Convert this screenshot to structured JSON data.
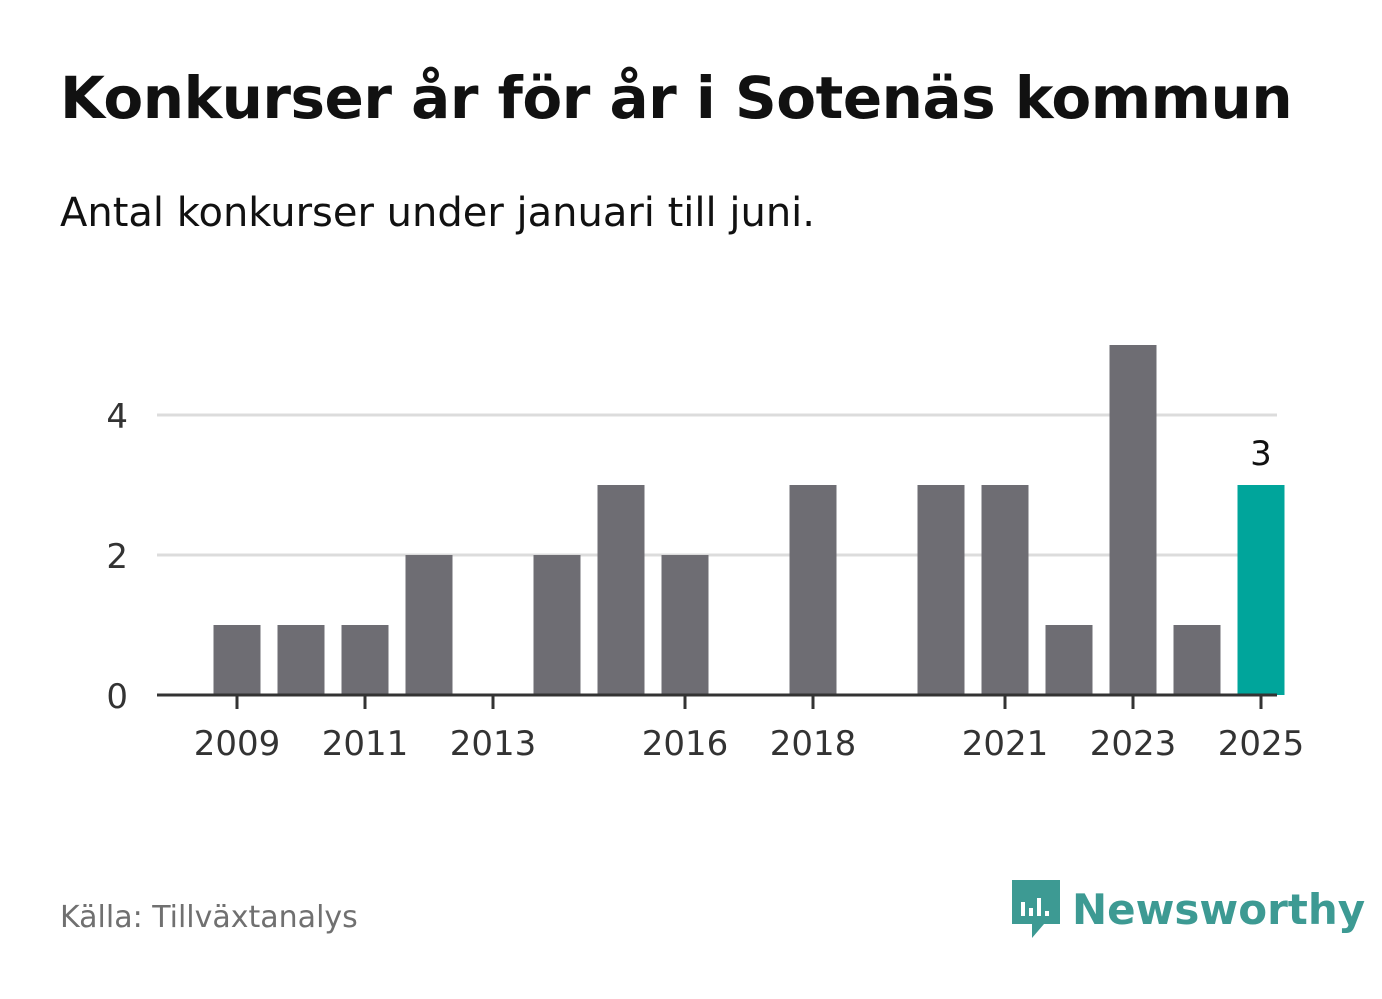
{
  "title": "Konkurser år för år i Sotenäs kommun",
  "subtitle": "Antal konkurser under januari till juni.",
  "source": "Källa: Tillväxtanalys",
  "brand": {
    "name": "Newsworthy",
    "icon": "newsworthy-logo-icon"
  },
  "colors": {
    "bar": "#6e6d73",
    "highlight": "#00a59b",
    "grid": "#dcdcdc",
    "axis": "#333333",
    "brand": "#3d9a93"
  },
  "chart_data": {
    "type": "bar",
    "categories": [
      "2009",
      "2010",
      "2011",
      "2012",
      "2013",
      "2014",
      "2015",
      "2016",
      "2017",
      "2018",
      "2019",
      "2020",
      "2021",
      "2022",
      "2023",
      "2024",
      "2025"
    ],
    "values": [
      1,
      1,
      1,
      2,
      0,
      2,
      3,
      2,
      0,
      3,
      0,
      3,
      3,
      1,
      5,
      1,
      3
    ],
    "x_tick_labels": [
      "2009",
      "2011",
      "2013",
      "2016",
      "2018",
      "2021",
      "2023",
      "2025"
    ],
    "y_ticks": [
      0,
      2,
      4
    ],
    "ylim": [
      0,
      5
    ],
    "grid": true,
    "highlight_category": "2025",
    "data_labels": [
      {
        "category": "2025",
        "text": "3"
      }
    ]
  }
}
